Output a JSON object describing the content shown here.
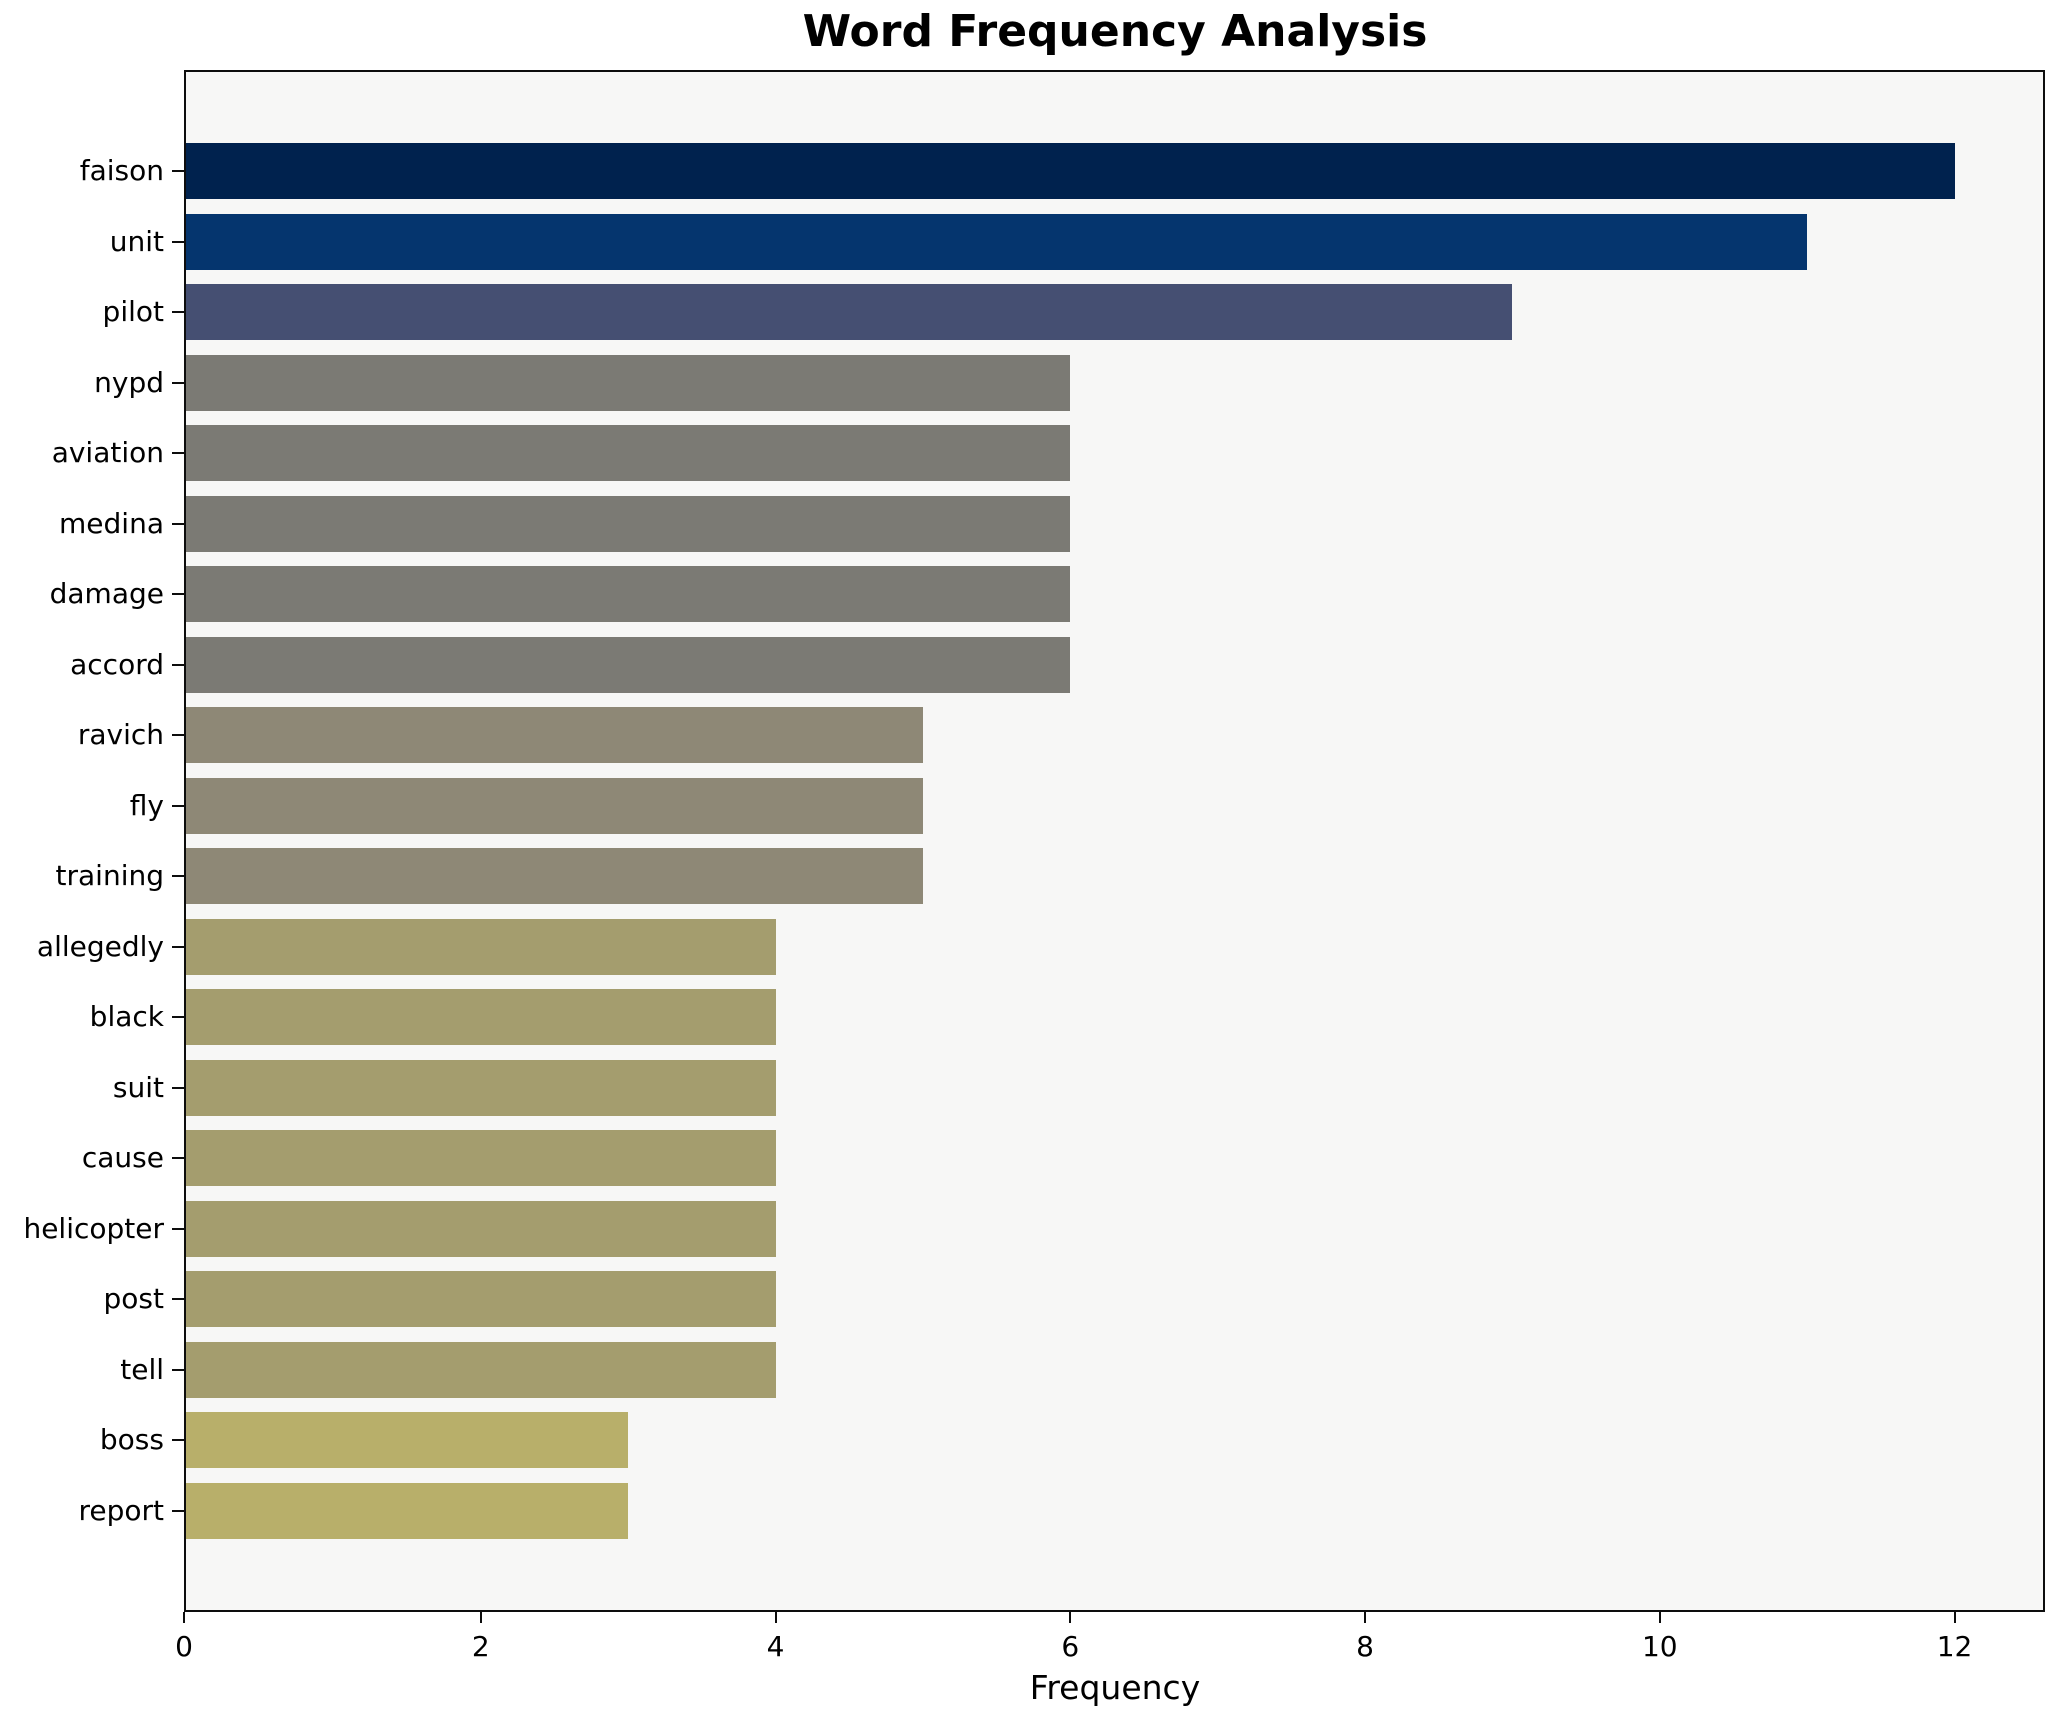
{
  "title": "Word Frequency Analysis",
  "chart_data": {
    "type": "bar",
    "orientation": "horizontal",
    "title": "Word Frequency Analysis",
    "xlabel": "Frequency",
    "ylabel": "",
    "categories": [
      "faison",
      "unit",
      "pilot",
      "nypd",
      "aviation",
      "medina",
      "damage",
      "accord",
      "ravich",
      "fly",
      "training",
      "allegedly",
      "black",
      "suit",
      "cause",
      "helicopter",
      "post",
      "tell",
      "boss",
      "report"
    ],
    "values": [
      12,
      11,
      9,
      6,
      6,
      6,
      6,
      6,
      5,
      5,
      5,
      4,
      4,
      4,
      4,
      4,
      4,
      4,
      3,
      3
    ],
    "bar_colors": [
      "#00224e",
      "#05356e",
      "#454f72",
      "#7b7a74",
      "#7b7a74",
      "#7b7a74",
      "#7b7a74",
      "#7b7a74",
      "#8e8876",
      "#8e8876",
      "#8e8876",
      "#a49d6e",
      "#a49d6e",
      "#a49d6e",
      "#a49d6e",
      "#a49d6e",
      "#a49d6e",
      "#a49d6e",
      "#b8af6a",
      "#b8af6a"
    ],
    "xlim": [
      0,
      12.6
    ],
    "xticks": [
      0,
      2,
      4,
      6,
      8,
      10,
      12
    ],
    "grid": false,
    "legend_position": "none",
    "plot_background": "#f7f7f6",
    "figure_background": "#ffffff",
    "spine_color": "#0d0d0d"
  }
}
